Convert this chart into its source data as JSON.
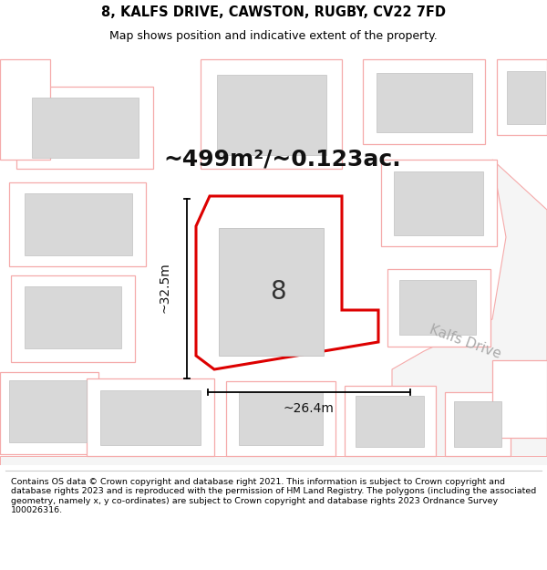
{
  "title_line1": "8, KALFS DRIVE, CAWSTON, RUGBY, CV22 7FD",
  "title_line2": "Map shows position and indicative extent of the property.",
  "area_label": "~499m²/~0.123ac.",
  "dim_width": "~26.4m",
  "dim_height": "~32.5m",
  "plot_number": "8",
  "road_label": "Kalfs Drive",
  "footer": "Contains OS data © Crown copyright and database right 2021. This information is subject to Crown copyright and database rights 2023 and is reproduced with the permission of HM Land Registry. The polygons (including the associated geometry, namely x, y co-ordinates) are subject to Crown copyright and database rights 2023 Ordnance Survey 100026316.",
  "bg_color": "#ffffff",
  "map_bg": "#ffffff",
  "plot_stroke": "#dd0000",
  "building_fill": "#d8d8d8",
  "building_stroke": "#c0c0c0",
  "neighbor_stroke": "#f5aaaa",
  "neighbor_fill": "#ffffff",
  "road_color": "#f5f5f5",
  "title_fontsize": 10.5,
  "subtitle_fontsize": 9,
  "area_fontsize": 18,
  "dim_fontsize": 10,
  "plot_label_fontsize": 20,
  "road_label_fontsize": 11,
  "footer_fontsize": 6.8
}
